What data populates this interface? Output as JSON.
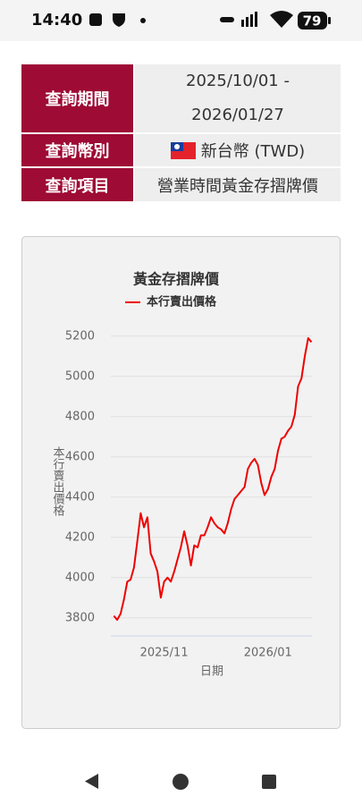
{
  "status_bar": {
    "time": "14:40",
    "battery": "79"
  },
  "query_table": {
    "rows": [
      {
        "label": "查詢期間",
        "value": "2025/10/01 - 2026/01/27"
      },
      {
        "label": "查詢幣別",
        "value": "新台幣 (TWD)"
      },
      {
        "label": "查詢項目",
        "value": "營業時間黃金存摺牌價"
      }
    ]
  },
  "chart_data": {
    "type": "line",
    "title": "黃金存摺牌價",
    "y_label": "本行賣出價格",
    "x_label": "日期",
    "categories": [
      null,
      null,
      null,
      null,
      null,
      null,
      null,
      null,
      null,
      null,
      null,
      null,
      null,
      null,
      null,
      "2025/11",
      null,
      null,
      null,
      null,
      null,
      null,
      null,
      null,
      null,
      null,
      null,
      null,
      null,
      null,
      null,
      null,
      null,
      null,
      null,
      null,
      null,
      null,
      null,
      null,
      null,
      null,
      null,
      null,
      null,
      null,
      "2026/01",
      null,
      null,
      null,
      null,
      null,
      null,
      null,
      null,
      null,
      null,
      null,
      null,
      null
    ],
    "series": [
      {
        "name": "本行賣出價格",
        "color": "#ee0000",
        "values": [
          3810,
          3790,
          3820,
          3890,
          3980,
          3990,
          4050,
          4180,
          4320,
          4250,
          4300,
          4120,
          4080,
          4030,
          3900,
          3980,
          4000,
          3980,
          4030,
          4090,
          4150,
          4230,
          4160,
          4060,
          4160,
          4150,
          4210,
          4210,
          4250,
          4300,
          4270,
          4250,
          4240,
          4220,
          4270,
          4340,
          4390,
          4410,
          4430,
          4450,
          4540,
          4570,
          4590,
          4560,
          4470,
          4410,
          4440,
          4500,
          4540,
          4630,
          4690,
          4700,
          4730,
          4750,
          4810,
          4950,
          4990,
          5100,
          5190,
          5170
        ]
      }
    ],
    "ylim": [
      3710,
      5270
    ],
    "yticks": [
      3800,
      4000,
      4200,
      4400,
      4600,
      4800,
      5000,
      5200
    ],
    "grid": true
  }
}
